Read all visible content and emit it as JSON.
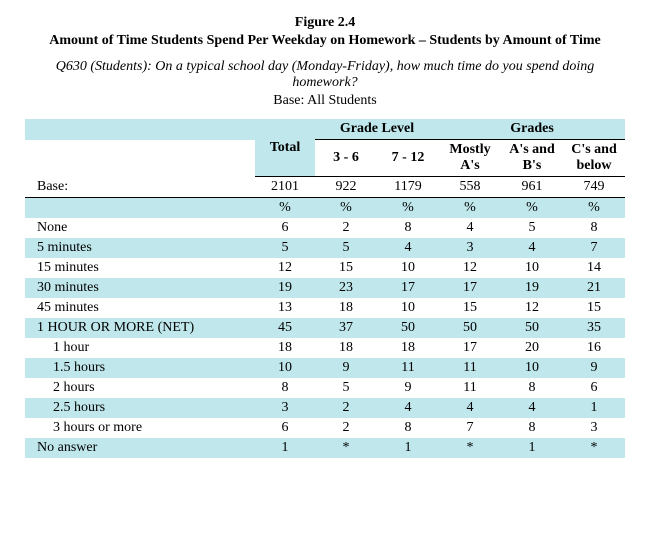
{
  "figure_number": "Figure 2.4",
  "title": "Amount of Time Students Spend Per Weekday on Homework – Students by Amount of Time",
  "question": "Q630 (Students):  On a typical school day (Monday-Friday), how much time do you spend doing homework?",
  "base_text": "Base:  All Students",
  "headers": {
    "total": "Total",
    "grade_level_group": "Grade Level",
    "grades_group": "Grades",
    "g3_6": "3 - 6",
    "g7_12": "7 - 12",
    "mostly_a": "Mostly A's",
    "a_and_b": "A's and B's",
    "c_below": "C's and below"
  },
  "base_label": "Base:",
  "base_values": {
    "total": "2101",
    "g3_6": "922",
    "g7_12": "1179",
    "mostly_a": "558",
    "a_and_b": "961",
    "c_below": "749"
  },
  "pct_symbol": "%",
  "rows": {
    "none": {
      "label": "None",
      "v": [
        "6",
        "2",
        "8",
        "4",
        "5",
        "8"
      ]
    },
    "m5": {
      "label": "5 minutes",
      "v": [
        "5",
        "5",
        "4",
        "3",
        "4",
        "7"
      ]
    },
    "m15": {
      "label": "15 minutes",
      "v": [
        "12",
        "15",
        "10",
        "12",
        "10",
        "14"
      ]
    },
    "m30": {
      "label": "30 minutes",
      "v": [
        "19",
        "23",
        "17",
        "17",
        "19",
        "21"
      ]
    },
    "m45": {
      "label": "45 minutes",
      "v": [
        "13",
        "18",
        "10",
        "15",
        "12",
        "15"
      ]
    },
    "net1h": {
      "label": "1 HOUR OR MORE (NET)",
      "v": [
        "45",
        "37",
        "50",
        "50",
        "50",
        "35"
      ]
    },
    "h1": {
      "label": "1 hour",
      "v": [
        "18",
        "18",
        "18",
        "17",
        "20",
        "16"
      ]
    },
    "h15": {
      "label": "1.5 hours",
      "v": [
        "10",
        "9",
        "11",
        "11",
        "10",
        "9"
      ]
    },
    "h2": {
      "label": "2 hours",
      "v": [
        "8",
        "5",
        "9",
        "11",
        "8",
        "6"
      ]
    },
    "h25": {
      "label": "2.5 hours",
      "v": [
        "3",
        "2",
        "4",
        "4",
        "4",
        "1"
      ]
    },
    "h3": {
      "label": "3 hours or more",
      "v": [
        "6",
        "2",
        "8",
        "7",
        "8",
        "3"
      ]
    },
    "noans": {
      "label": "No answer",
      "v": [
        "1",
        "*",
        "1",
        "*",
        "1",
        "*"
      ]
    }
  },
  "style": {
    "band_color": "#bfe7ec",
    "text_color": "#000000",
    "font_family": "Times New Roman",
    "body_fontsize_pt": 11,
    "header_bold": true
  }
}
